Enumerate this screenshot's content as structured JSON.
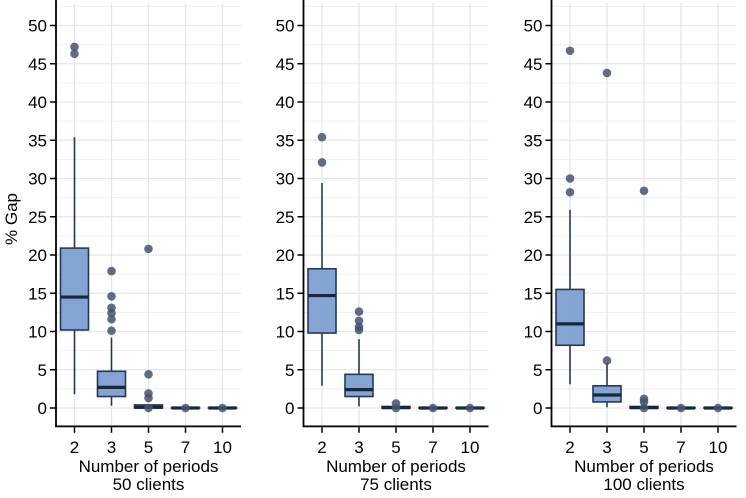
{
  "chart_data": {
    "type": "boxplot",
    "title": "",
    "ylabel": "% Gap",
    "xlabel": "Number of periods",
    "categories": [
      "2",
      "3",
      "5",
      "7",
      "10"
    ],
    "ylim": [
      0,
      50
    ],
    "yticks": [
      0,
      5,
      10,
      15,
      20,
      25,
      30,
      35,
      40,
      45,
      50
    ],
    "y_minor_interval": 2.5,
    "grid": "horizontal major+minor, vertical major at categories",
    "legend_position": "none",
    "colors": {
      "box_fill": "#7da0cf",
      "box_stroke": "#24395a",
      "median": "#16273f",
      "outlier": "#44546f",
      "grid_major": "#e6e6e6",
      "grid_minor": "#f1f1f1",
      "axis": "#000000",
      "text": "#000000",
      "background": "#ffffff"
    },
    "panels": [
      {
        "title": "50 clients",
        "boxes": [
          {
            "category": "2",
            "whisker_low": 1.8,
            "q1": 10.2,
            "median": 14.5,
            "q3": 20.9,
            "whisker_high": 35.4,
            "outliers": [
              47.2,
              46.3
            ]
          },
          {
            "category": "3",
            "whisker_low": 0.3,
            "q1": 1.5,
            "median": 2.7,
            "q3": 4.8,
            "whisker_high": 9.2,
            "outliers": [
              17.9,
              14.6,
              13.1,
              12.4,
              11.6,
              10.1
            ]
          },
          {
            "category": "5",
            "whisker_low": 0,
            "q1": 0,
            "median": 0.1,
            "q3": 0.4,
            "whisker_high": 0.5,
            "outliers": [
              20.8,
              4.4,
              1.9,
              1.3,
              0
            ]
          },
          {
            "category": "7",
            "whisker_low": 0,
            "q1": 0,
            "median": 0,
            "q3": 0.05,
            "whisker_high": 0.05,
            "outliers": [
              0
            ]
          },
          {
            "category": "10",
            "whisker_low": 0,
            "q1": 0,
            "median": 0,
            "q3": 0.05,
            "whisker_high": 0.05,
            "outliers": [
              0
            ]
          }
        ]
      },
      {
        "title": "75 clients",
        "boxes": [
          {
            "category": "2",
            "whisker_low": 2.9,
            "q1": 9.8,
            "median": 14.7,
            "q3": 18.2,
            "whisker_high": 29.4,
            "outliers": [
              35.4,
              32.1
            ]
          },
          {
            "category": "3",
            "whisker_low": 0.2,
            "q1": 1.5,
            "median": 2.4,
            "q3": 4.4,
            "whisker_high": 9.0,
            "outliers": [
              12.6,
              11.4,
              10.6,
              10.2
            ]
          },
          {
            "category": "5",
            "whisker_low": 0,
            "q1": 0,
            "median": 0.05,
            "q3": 0.2,
            "whisker_high": 0.3,
            "outliers": [
              0.6,
              0
            ]
          },
          {
            "category": "7",
            "whisker_low": 0,
            "q1": 0,
            "median": 0,
            "q3": 0.05,
            "whisker_high": 0.05,
            "outliers": [
              0
            ]
          },
          {
            "category": "10",
            "whisker_low": 0,
            "q1": 0,
            "median": 0,
            "q3": 0.05,
            "whisker_high": 0.05,
            "outliers": [
              0
            ]
          }
        ]
      },
      {
        "title": "100 clients",
        "boxes": [
          {
            "category": "2",
            "whisker_low": 3.1,
            "q1": 8.2,
            "median": 11.0,
            "q3": 15.5,
            "whisker_high": 25.9,
            "outliers": [
              46.7,
              30.0,
              28.2
            ]
          },
          {
            "category": "3",
            "whisker_low": 0.1,
            "q1": 0.8,
            "median": 1.7,
            "q3": 2.9,
            "whisker_high": 5.9,
            "outliers": [
              43.8,
              6.2
            ]
          },
          {
            "category": "5",
            "whisker_low": 0,
            "q1": 0,
            "median": 0.05,
            "q3": 0.2,
            "whisker_high": 0.3,
            "outliers": [
              28.4,
              1.2,
              0.8,
              0
            ]
          },
          {
            "category": "7",
            "whisker_low": 0,
            "q1": 0,
            "median": 0,
            "q3": 0.05,
            "whisker_high": 0.05,
            "outliers": [
              0
            ]
          },
          {
            "category": "10",
            "whisker_low": 0,
            "q1": 0,
            "median": 0,
            "q3": 0.05,
            "whisker_high": 0.05,
            "outliers": [
              0
            ]
          }
        ]
      }
    ]
  }
}
